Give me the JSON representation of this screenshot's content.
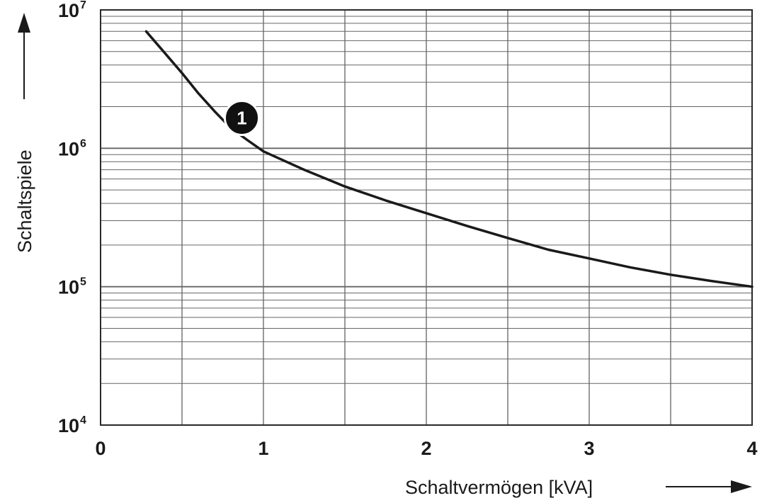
{
  "chart_data": {
    "type": "line",
    "title": "",
    "xlabel": "Schaltvermögen [kVA]",
    "ylabel": "Schaltspiele",
    "x_scale": "linear",
    "y_scale": "log",
    "xlim": [
      0,
      4
    ],
    "ylim": [
      10000,
      10000000
    ],
    "grid": true,
    "x_ticks": [
      "0",
      "1",
      "2",
      "3",
      "4"
    ],
    "y_ticks": [
      {
        "base": "10",
        "exp": "4",
        "value": 10000
      },
      {
        "base": "10",
        "exp": "5",
        "value": 100000
      },
      {
        "base": "10",
        "exp": "6",
        "value": 1000000
      },
      {
        "base": "10",
        "exp": "7",
        "value": 10000000
      }
    ],
    "series": [
      {
        "x": [
          0.28,
          0.4,
          0.5,
          0.6,
          0.7,
          0.8,
          0.9,
          1.0,
          1.25,
          1.5,
          1.75,
          2.0,
          2.25,
          2.5,
          2.75,
          3.0,
          3.25,
          3.5,
          3.75,
          4.0
        ],
        "y": [
          7000000,
          4800000,
          3500000,
          2500000,
          1850000,
          1400000,
          1150000,
          950000,
          700000,
          530000,
          420000,
          340000,
          275000,
          225000,
          185000,
          160000,
          138000,
          122000,
          110000,
          100000
        ],
        "color": "#1a1a1a"
      }
    ],
    "annotations": [
      {
        "text": "1",
        "x": 0.85,
        "y": 1600000
      }
    ]
  }
}
